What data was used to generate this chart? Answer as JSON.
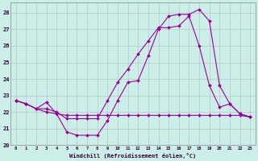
{
  "xlabel": "Windchill (Refroidissement éolien,°C)",
  "background_color": "#cceee8",
  "grid_color": "#b0b0b0",
  "line_color": "#990099",
  "xlim": [
    -0.5,
    23.5
  ],
  "ylim": [
    20.0,
    28.6
  ],
  "yticks": [
    20,
    21,
    22,
    23,
    24,
    25,
    26,
    27,
    28
  ],
  "xticks": [
    0,
    1,
    2,
    3,
    4,
    5,
    6,
    7,
    8,
    9,
    10,
    11,
    12,
    13,
    14,
    15,
    16,
    17,
    18,
    19,
    20,
    21,
    22,
    23
  ],
  "series1_x": [
    0,
    1,
    2,
    3,
    4,
    5,
    6,
    7,
    8,
    9,
    10,
    11,
    12,
    13,
    14,
    15,
    16,
    17,
    18,
    19,
    20,
    21,
    22,
    23
  ],
  "series1_y": [
    22.7,
    22.5,
    22.2,
    22.6,
    21.9,
    20.8,
    20.6,
    20.6,
    20.6,
    21.5,
    22.7,
    23.8,
    23.9,
    25.4,
    27.0,
    27.8,
    27.9,
    27.9,
    28.2,
    27.5,
    23.6,
    22.5,
    21.9,
    21.7
  ],
  "series2_x": [
    0,
    1,
    2,
    3,
    4,
    5,
    6,
    7,
    8,
    9,
    10,
    11,
    12,
    13,
    14,
    15,
    16,
    17,
    18,
    19,
    20,
    21,
    22,
    23
  ],
  "series2_y": [
    22.7,
    22.5,
    22.2,
    22.2,
    22.0,
    21.6,
    21.6,
    21.6,
    21.6,
    22.7,
    23.8,
    24.6,
    25.5,
    26.3,
    27.1,
    27.1,
    27.2,
    27.8,
    26.0,
    23.6,
    22.3,
    22.5,
    21.9,
    21.7
  ],
  "series3_x": [
    0,
    1,
    2,
    3,
    4,
    5,
    6,
    7,
    8,
    9,
    10,
    11,
    12,
    13,
    14,
    15,
    16,
    17,
    18,
    19,
    20,
    21,
    22,
    23
  ],
  "series3_y": [
    22.7,
    22.5,
    22.2,
    22.0,
    21.9,
    21.8,
    21.8,
    21.8,
    21.8,
    21.8,
    21.8,
    21.8,
    21.8,
    21.8,
    21.8,
    21.8,
    21.8,
    21.8,
    21.8,
    21.8,
    21.8,
    21.8,
    21.8,
    21.7
  ]
}
